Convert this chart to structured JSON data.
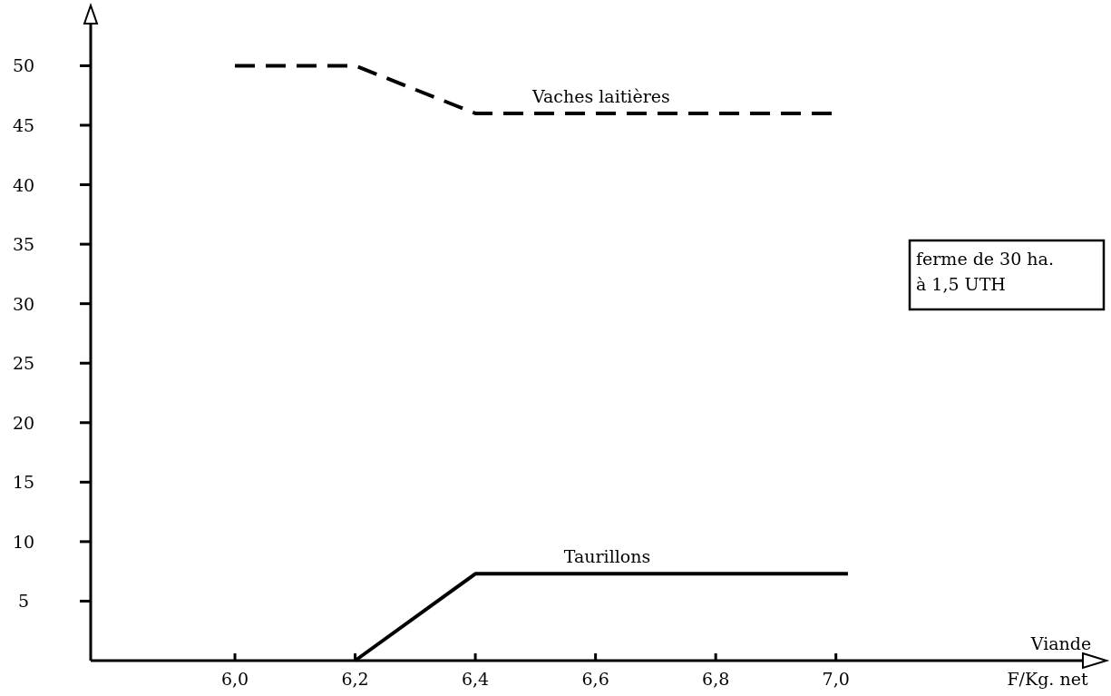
{
  "chart_data": {
    "type": "line",
    "xlabel": "Viande\nF/Kg. net",
    "xlim": [
      5.76,
      7.42
    ],
    "ylim": [
      0,
      54
    ],
    "xticks": [
      {
        "value": 6,
        "label": "6,0"
      },
      {
        "value": 6.2,
        "label": "6,2"
      },
      {
        "value": 6.4,
        "label": "6,4"
      },
      {
        "value": 6.6,
        "label": "6,6"
      },
      {
        "value": 6.8,
        "label": "6,8"
      },
      {
        "value": 7,
        "label": "7,0"
      }
    ],
    "yticks": [
      5,
      10,
      15,
      20,
      25,
      30,
      35,
      40,
      45,
      50
    ],
    "series": [
      {
        "name": "Vaches laitières",
        "color": "#000000",
        "line_style": "dashed",
        "x": [
          6.0,
          6.2,
          6.4,
          7.0
        ],
        "values": [
          50,
          50,
          46,
          46
        ]
      },
      {
        "name": "Taurillons",
        "color": "#000000",
        "line_style": "solid",
        "x": [
          6.2,
          6.4,
          7.02
        ],
        "values": [
          0,
          7.3,
          7.3
        ]
      }
    ],
    "annotations": [
      "ferme de 30 ha.\nà 1,5 UTH"
    ],
    "legend": false,
    "grid": false
  }
}
